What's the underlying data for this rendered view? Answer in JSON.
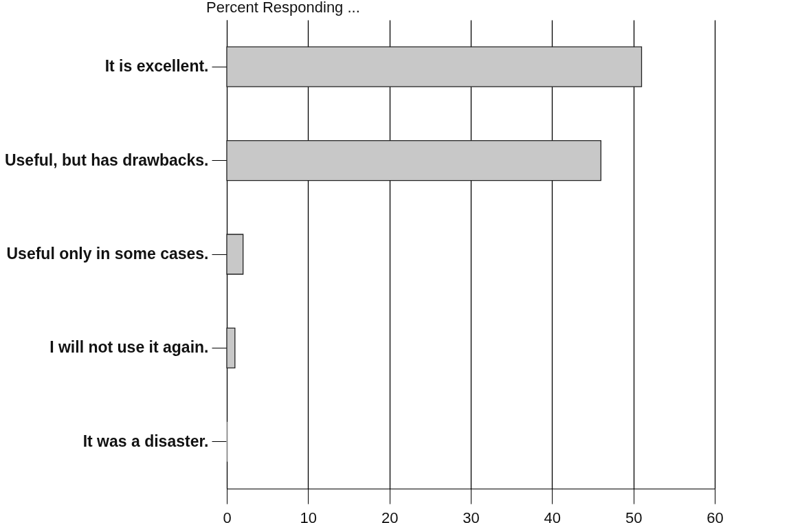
{
  "chart_data": {
    "type": "bar",
    "orientation": "horizontal",
    "title": "Percent Responding ...",
    "categories": [
      "It is excellent.",
      "Useful, but has drawbacks.",
      "Useful only in some cases.",
      "I will not use it again.",
      "It was a disaster."
    ],
    "values": [
      51,
      46,
      2,
      1,
      0
    ],
    "color": "#c8c8c8",
    "xlim": [
      0,
      60
    ],
    "xticks": [
      0,
      10,
      20,
      30,
      40,
      50,
      60
    ],
    "grid": "x"
  }
}
